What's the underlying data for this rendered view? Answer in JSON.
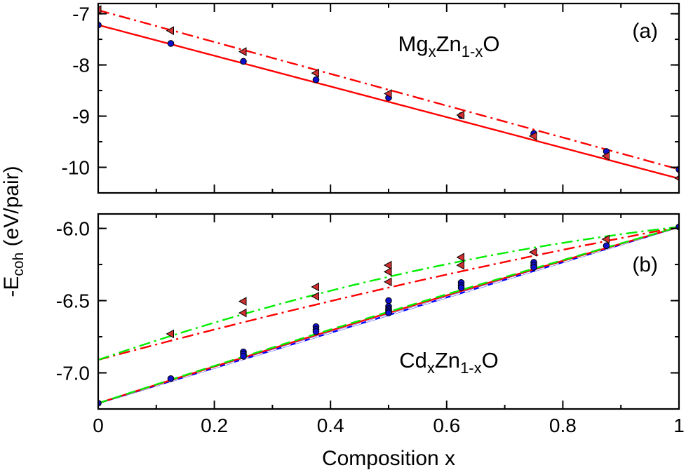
{
  "figure": {
    "ylabel_main": "-E",
    "ylabel_sub": "coh",
    "ylabel_unit": " (eV/pair)"
  },
  "chart_data": [
    {
      "type": "line",
      "panel_label": "(a)",
      "title": {
        "parts": [
          [
            "Mg",
            ""
          ],
          [
            "x",
            "sub"
          ],
          [
            "Zn",
            ""
          ],
          [
            "1-x",
            "sub"
          ],
          [
            "O",
            ""
          ]
        ]
      },
      "xlabel": "",
      "ylabel": "-E_coh (eV/pair)",
      "xlim": [
        0,
        1
      ],
      "ylim": [
        -10.5,
        -6.8
      ],
      "yticks": [
        -10,
        -9,
        -8,
        -7
      ],
      "ytick_labels": [
        "-10",
        "-9",
        "-8",
        "-7"
      ],
      "xticks": [
        0,
        0.2,
        0.4,
        0.6,
        0.8,
        1
      ],
      "show_xtick_labels": false,
      "series": [
        {
          "name": "circles (solid)",
          "color": "#ff0000",
          "dash": "solid",
          "marker": "circle",
          "line": [
            [
              0,
              -7.22
            ],
            [
              1,
              -10.22
            ]
          ],
          "points": [
            [
              0,
              -7.22
            ],
            [
              0.125,
              -7.58
            ],
            [
              0.25,
              -7.93
            ],
            [
              0.375,
              -8.29
            ],
            [
              0.5,
              -8.64
            ],
            [
              0.625,
              -8.99
            ],
            [
              0.75,
              -9.34
            ],
            [
              0.875,
              -9.69
            ],
            [
              1,
              -10.04
            ]
          ]
        },
        {
          "name": "triangles (dash-dot)",
          "color": "#ff0000",
          "dash": "dashdot",
          "marker": "triangle",
          "line": [
            [
              0,
              -6.93
            ],
            [
              1,
              -10.04
            ]
          ],
          "points": [
            [
              0,
              -6.92
            ],
            [
              0.125,
              -7.33
            ],
            [
              0.25,
              -7.74
            ],
            [
              0.375,
              -8.16
            ],
            [
              0.5,
              -8.56
            ],
            [
              0.625,
              -8.98
            ],
            [
              0.75,
              -9.39
            ],
            [
              0.875,
              -9.78
            ],
            [
              1,
              -10.21
            ]
          ]
        }
      ]
    },
    {
      "type": "line",
      "panel_label": "(b)",
      "title": {
        "parts": [
          [
            "Cd",
            ""
          ],
          [
            "x",
            "sub"
          ],
          [
            "Zn",
            ""
          ],
          [
            "1-x",
            "sub"
          ],
          [
            "O",
            ""
          ]
        ]
      },
      "xlabel": "Composition x",
      "ylabel": "-E_coh (eV/pair)",
      "xlim": [
        0,
        1
      ],
      "ylim": [
        -7.25,
        -5.9
      ],
      "yticks": [
        -7.0,
        -6.5,
        -6.0
      ],
      "ytick_labels": [
        "-7.0",
        "-6.5",
        "-6.0"
      ],
      "xticks": [
        0,
        0.2,
        0.4,
        0.6,
        0.8,
        1
      ],
      "xtick_labels": [
        "0",
        "0.2",
        "0.4",
        "0.6",
        "0.8",
        "1"
      ],
      "series": [
        {
          "name": "blue solid",
          "color": "#0000ff",
          "dash": "solid",
          "line": [
            [
              0,
              -7.21
            ],
            [
              1,
              -5.99
            ]
          ]
        },
        {
          "name": "white dashed",
          "color": "#ffffff",
          "dash": "dashed",
          "width": 1.6,
          "line": [
            [
              0,
              -7.21
            ],
            [
              1,
              -5.99
            ]
          ]
        },
        {
          "name": "red solid",
          "color": "#ff0000",
          "dash": "solid",
          "bow": 0.06,
          "line": [
            [
              0,
              -7.21
            ],
            [
              1,
              -5.99
            ]
          ]
        },
        {
          "name": "green dashed",
          "color": "#00ee00",
          "dash": "dashed",
          "bow": 0.09,
          "line": [
            [
              0,
              -7.21
            ],
            [
              1,
              -5.99
            ]
          ]
        },
        {
          "name": "red dash-dot",
          "color": "#ff0000",
          "dash": "dashdot",
          "bow": 0.16,
          "line": [
            [
              0,
              -6.91
            ],
            [
              1,
              -5.99
            ]
          ]
        },
        {
          "name": "green dash-dot",
          "color": "#00ee00",
          "dash": "dashdot",
          "bow": 0.46,
          "line": [
            [
              0,
              -6.91
            ],
            [
              1,
              -5.99
            ]
          ]
        },
        {
          "name": "circles",
          "color": "#ff0000",
          "marker": "circle",
          "points": [
            [
              0,
              -7.21
            ],
            [
              0.125,
              -7.04
            ],
            [
              0.25,
              -6.855
            ],
            [
              0.25,
              -6.87
            ],
            [
              0.25,
              -6.885
            ],
            [
              0.375,
              -6.68
            ],
            [
              0.375,
              -6.7
            ],
            [
              0.375,
              -6.715
            ],
            [
              0.5,
              -6.5
            ],
            [
              0.5,
              -6.54
            ],
            [
              0.5,
              -6.555
            ],
            [
              0.5,
              -6.565
            ],
            [
              0.5,
              -6.575
            ],
            [
              0.5,
              -6.585
            ],
            [
              0.625,
              -6.375
            ],
            [
              0.625,
              -6.395
            ],
            [
              0.625,
              -6.41
            ],
            [
              0.75,
              -6.235
            ],
            [
              0.75,
              -6.255
            ],
            [
              0.75,
              -6.27
            ],
            [
              0.875,
              -6.12
            ],
            [
              1,
              -5.99
            ]
          ]
        },
        {
          "name": "triangles",
          "color": "#ff0000",
          "marker": "triangle",
          "points": [
            [
              0.125,
              -6.73
            ],
            [
              0.25,
              -6.505
            ],
            [
              0.25,
              -6.585
            ],
            [
              0.375,
              -6.405
            ],
            [
              0.375,
              -6.47
            ],
            [
              0.5,
              -6.255
            ],
            [
              0.5,
              -6.3
            ],
            [
              0.5,
              -6.37
            ],
            [
              0.625,
              -6.2
            ],
            [
              0.625,
              -6.255
            ],
            [
              0.75,
              -6.165
            ],
            [
              0.875,
              -6.075
            ]
          ]
        }
      ]
    }
  ]
}
